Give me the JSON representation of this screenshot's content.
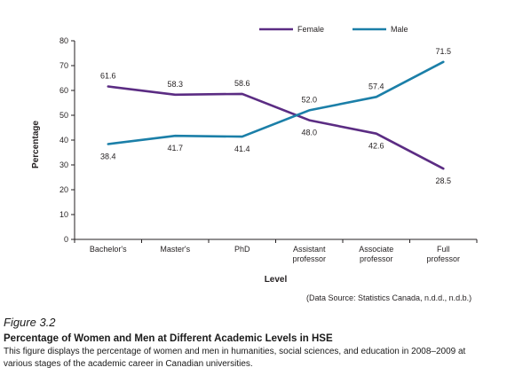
{
  "chart_data": {
    "type": "line",
    "categories": [
      [
        "Bachelor's"
      ],
      [
        "Master's"
      ],
      [
        "PhD"
      ],
      [
        "Assistant",
        "professor"
      ],
      [
        "Associate",
        "professor"
      ],
      [
        "Full",
        "professor"
      ]
    ],
    "series": [
      {
        "name": "Female",
        "color": "#5b2c83",
        "values": [
          61.6,
          58.3,
          58.6,
          48.0,
          42.6,
          28.5
        ]
      },
      {
        "name": "Male",
        "color": "#1b7fa8",
        "values": [
          38.4,
          41.7,
          41.4,
          52.0,
          57.4,
          71.5
        ]
      }
    ],
    "ylim": [
      0,
      80
    ],
    "yticks": [
      0,
      10,
      20,
      30,
      40,
      50,
      60,
      70,
      80
    ],
    "xlabel": "Level",
    "ylabel": "Percentage",
    "grid": false,
    "legend_position": "top-right",
    "source": "(Data Source: Statistics Canada, n.d.d., n.d.b.)"
  },
  "caption": {
    "figure_number": "Figure 3.2",
    "title": "Percentage of Women and Men at Different Academic Levels in HSE",
    "description": "This figure displays the percentage of women and men in humanities, social sciences, and education in 2008–2009 at various stages of the academic career in Canadian universities."
  }
}
